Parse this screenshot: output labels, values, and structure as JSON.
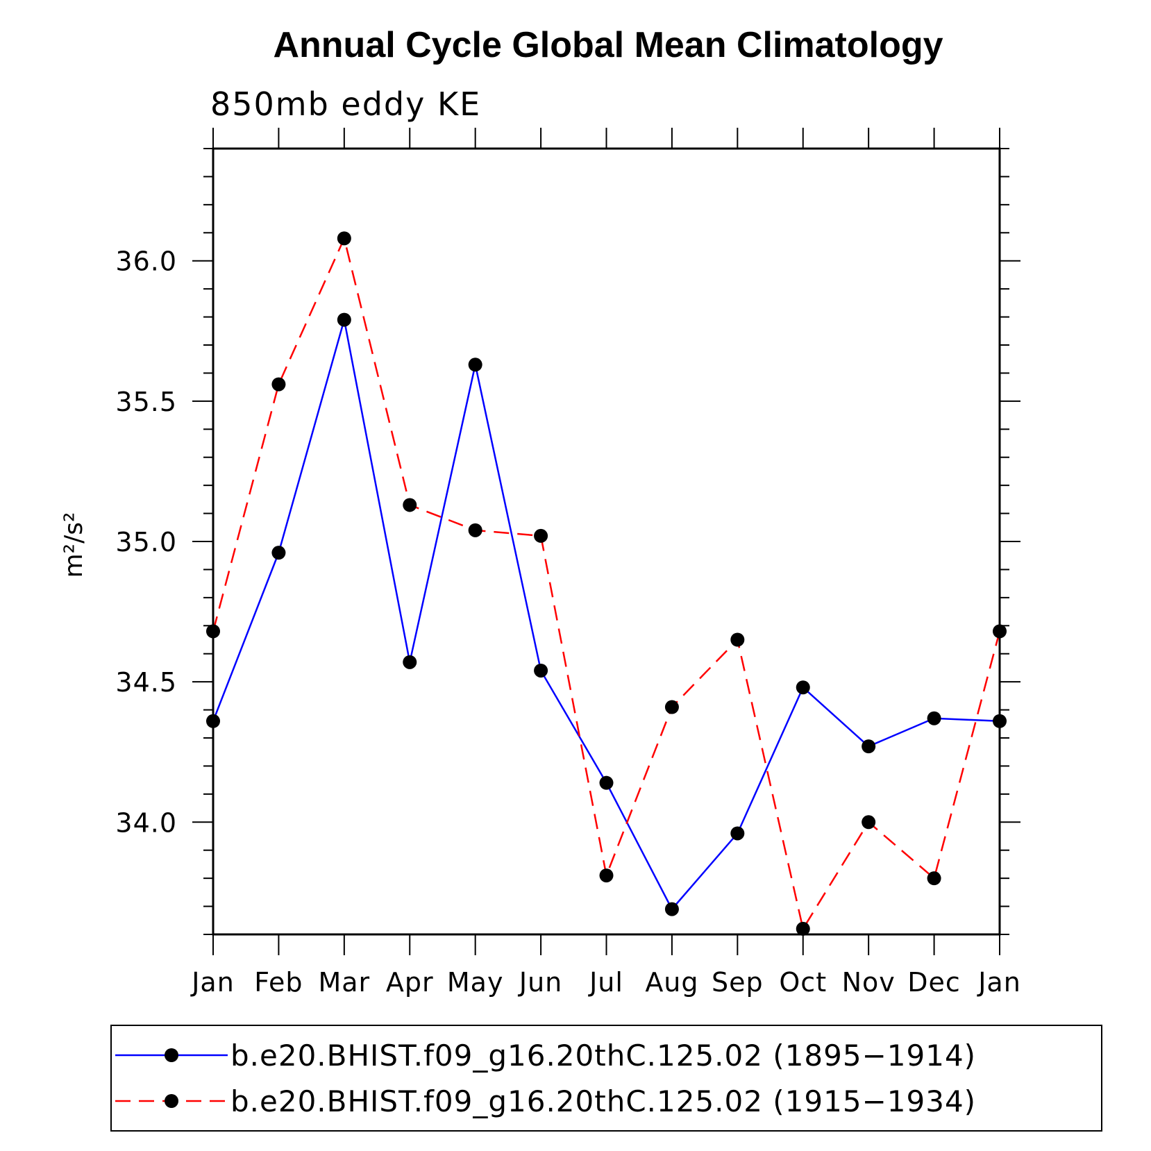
{
  "chart_data": {
    "type": "line",
    "title": "Annual Cycle Global Mean Climatology",
    "subtitle": "850mb eddy KE",
    "xlabel": "",
    "ylabel": "m²/s²",
    "ylim": [
      33.6,
      36.4
    ],
    "yticks": [
      34.0,
      34.5,
      35.0,
      35.5,
      36.0
    ],
    "ytick_labels": [
      "34.0",
      "34.5",
      "35.0",
      "35.5",
      "36.0"
    ],
    "categories": [
      "Jan",
      "Feb",
      "Mar",
      "Apr",
      "May",
      "Jun",
      "Jul",
      "Aug",
      "Sep",
      "Oct",
      "Nov",
      "Dec",
      "Jan"
    ],
    "legend_position": "bottom",
    "series": [
      {
        "name": "b.e20.BHIST.f09_g16.20thC.125.02 (1895−1914)",
        "color": "#0000ff",
        "style": "solid",
        "values": [
          34.36,
          34.96,
          35.79,
          34.57,
          35.63,
          34.54,
          34.14,
          33.69,
          33.96,
          34.48,
          34.27,
          34.37,
          34.36
        ]
      },
      {
        "name": "b.e20.BHIST.f09_g16.20thC.125.02 (1915−1934)",
        "color": "#ff0000",
        "style": "dashed",
        "values": [
          34.68,
          35.56,
          36.08,
          35.13,
          35.04,
          35.02,
          33.81,
          34.41,
          34.65,
          33.62,
          34.0,
          33.8,
          34.68
        ]
      }
    ]
  }
}
